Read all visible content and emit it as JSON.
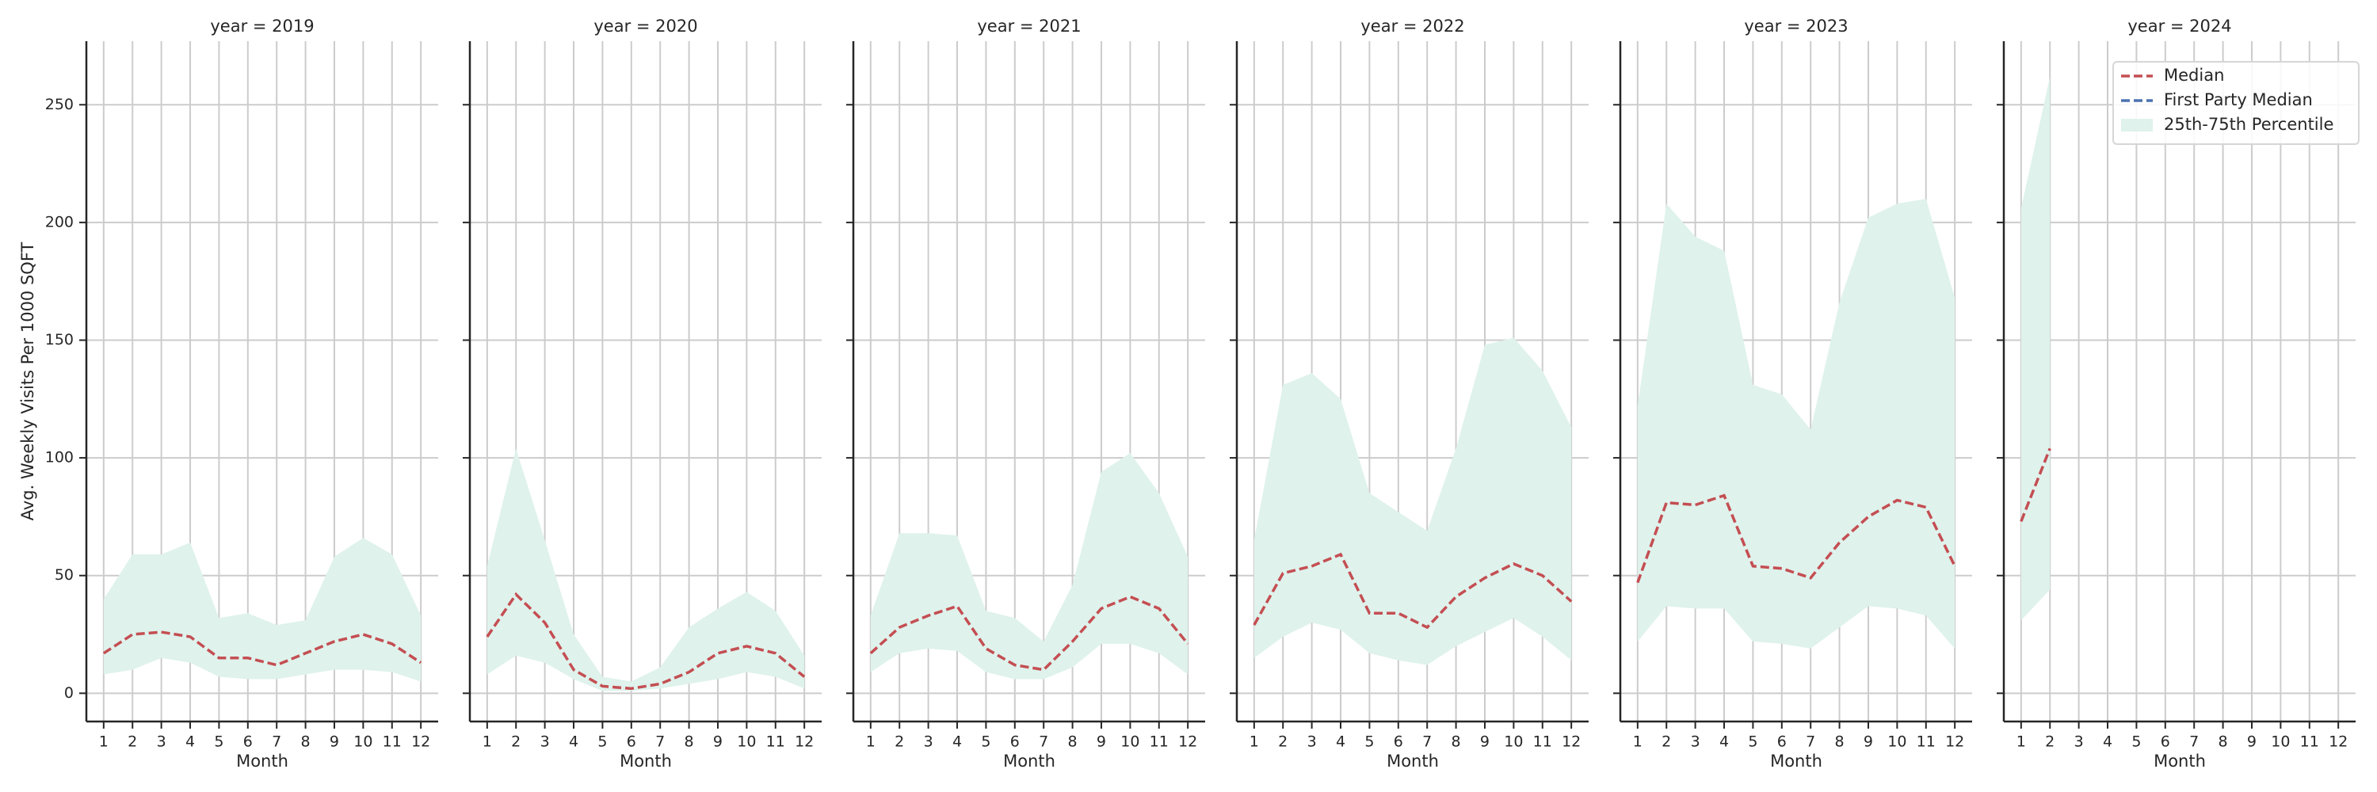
{
  "chart_data": [
    {
      "type": "line",
      "title": "year = 2019",
      "xlabel": "Month",
      "ylabel": "Avg. Weekly Visits Per 1000 SQFT",
      "x": [
        1,
        2,
        3,
        4,
        5,
        6,
        7,
        8,
        9,
        10,
        11,
        12
      ],
      "median": [
        17,
        25,
        26,
        24,
        15,
        15,
        12,
        17,
        22,
        25,
        21,
        13
      ],
      "p25": [
        8,
        10,
        15,
        13,
        7,
        6,
        6,
        8,
        10,
        10,
        9,
        5
      ],
      "p75": [
        40,
        59,
        59,
        64,
        32,
        34,
        29,
        31,
        58,
        66,
        59,
        33
      ],
      "median_color": "#c44e52",
      "band_color": "#dff2ec",
      "xlim": [
        0.4,
        12.6
      ],
      "xticks": [
        1,
        2,
        3,
        4,
        5,
        6,
        7,
        8,
        9,
        10,
        11,
        12
      ],
      "ylim": [
        -12,
        277
      ],
      "yticks": [
        0,
        50,
        100,
        150,
        200,
        250
      ],
      "grid": true
    },
    {
      "type": "line",
      "title": "year = 2020",
      "xlabel": "Month",
      "x": [
        1,
        2,
        3,
        4,
        5,
        6,
        7,
        8,
        9,
        10,
        11,
        12
      ],
      "median": [
        24,
        42,
        30,
        10,
        3,
        2,
        4,
        9,
        17,
        20,
        17,
        7
      ],
      "p25": [
        8,
        16,
        13,
        6,
        1,
        1,
        2,
        4,
        6,
        9,
        7,
        2
      ],
      "p75": [
        54,
        104,
        65,
        25,
        7,
        5,
        11,
        28,
        36,
        43,
        35,
        16
      ],
      "median_color": "#c44e52",
      "band_color": "#dff2ec",
      "xlim": [
        0.4,
        12.6
      ],
      "xticks": [
        1,
        2,
        3,
        4,
        5,
        6,
        7,
        8,
        9,
        10,
        11,
        12
      ],
      "ylim": [
        -12,
        277
      ],
      "yticks": [
        0,
        50,
        100,
        150,
        200,
        250
      ],
      "grid": true
    },
    {
      "type": "line",
      "title": "year = 2021",
      "xlabel": "Month",
      "x": [
        1,
        2,
        3,
        4,
        5,
        6,
        7,
        8,
        9,
        10,
        11,
        12
      ],
      "median": [
        17,
        28,
        33,
        37,
        19,
        12,
        10,
        22,
        36,
        41,
        36,
        21
      ],
      "p25": [
        9,
        17,
        19,
        18,
        9,
        6,
        6,
        11,
        21,
        21,
        17,
        8
      ],
      "p75": [
        33,
        68,
        68,
        67,
        35,
        32,
        22,
        46,
        94,
        102,
        85,
        58
      ],
      "median_color": "#c44e52",
      "band_color": "#dff2ec",
      "xlim": [
        0.4,
        12.6
      ],
      "xticks": [
        1,
        2,
        3,
        4,
        5,
        6,
        7,
        8,
        9,
        10,
        11,
        12
      ],
      "ylim": [
        -12,
        277
      ],
      "yticks": [
        0,
        50,
        100,
        150,
        200,
        250
      ],
      "grid": true
    },
    {
      "type": "line",
      "title": "year = 2022",
      "xlabel": "Month",
      "x": [
        1,
        2,
        3,
        4,
        5,
        6,
        7,
        8,
        9,
        10,
        11,
        12
      ],
      "median": [
        29,
        51,
        54,
        59,
        34,
        34,
        28,
        41,
        49,
        55,
        50,
        39
      ],
      "p25": [
        15,
        24,
        30,
        27,
        17,
        14,
        12,
        20,
        26,
        32,
        24,
        14
      ],
      "p75": [
        65,
        131,
        136,
        125,
        85,
        77,
        69,
        104,
        148,
        151,
        137,
        113
      ],
      "median_color": "#c44e52",
      "band_color": "#dff2ec",
      "xlim": [
        0.4,
        12.6
      ],
      "xticks": [
        1,
        2,
        3,
        4,
        5,
        6,
        7,
        8,
        9,
        10,
        11,
        12
      ],
      "ylim": [
        -12,
        277
      ],
      "yticks": [
        0,
        50,
        100,
        150,
        200,
        250
      ],
      "grid": true
    },
    {
      "type": "line",
      "title": "year = 2023",
      "xlabel": "Month",
      "x": [
        1,
        2,
        3,
        4,
        5,
        6,
        7,
        8,
        9,
        10,
        11,
        12
      ],
      "median": [
        47,
        81,
        80,
        84,
        54,
        53,
        49,
        64,
        75,
        82,
        79,
        54
      ],
      "p25": [
        22,
        37,
        36,
        36,
        22,
        21,
        19,
        28,
        37,
        36,
        33,
        19
      ],
      "p75": [
        122,
        208,
        194,
        188,
        131,
        127,
        112,
        166,
        202,
        208,
        210,
        168
      ],
      "median_color": "#c44e52",
      "band_color": "#dff2ec",
      "xlim": [
        0.4,
        12.6
      ],
      "xticks": [
        1,
        2,
        3,
        4,
        5,
        6,
        7,
        8,
        9,
        10,
        11,
        12
      ],
      "ylim": [
        -12,
        277
      ],
      "yticks": [
        0,
        50,
        100,
        150,
        200,
        250
      ],
      "grid": true
    },
    {
      "type": "line",
      "title": "year = 2024",
      "xlabel": "Month",
      "x": [
        1,
        2
      ],
      "median": [
        73,
        104
      ],
      "p25": [
        31,
        44
      ],
      "p75": [
        206,
        262
      ],
      "median_color": "#c44e52",
      "band_color": "#dff2ec",
      "xlim": [
        0.4,
        12.6
      ],
      "xticks": [
        1,
        2,
        3,
        4,
        5,
        6,
        7,
        8,
        9,
        10,
        11,
        12
      ],
      "ylim": [
        -12,
        277
      ],
      "yticks": [
        0,
        50,
        100,
        150,
        200,
        250
      ],
      "grid": true,
      "legend": {
        "loc": "upper right",
        "entries": [
          {
            "name": "Median",
            "color": "#c44e52",
            "kind": "line"
          },
          {
            "name": "First Party Median",
            "color": "#4c72b0",
            "kind": "line"
          },
          {
            "name": "25th-75th Percentile",
            "color": "#dff2ec",
            "kind": "patch"
          }
        ]
      }
    }
  ]
}
